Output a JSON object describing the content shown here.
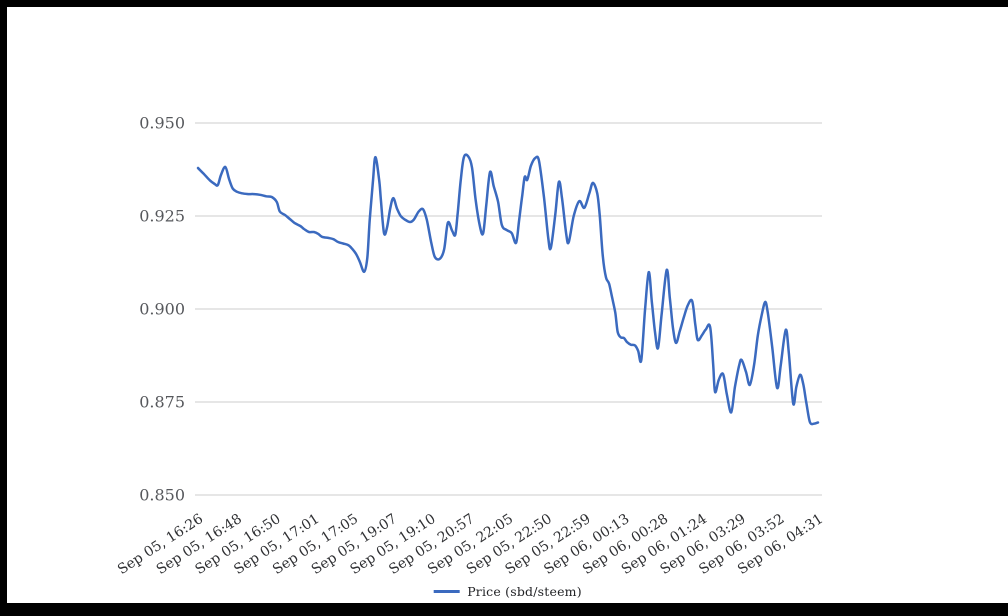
{
  "window": {
    "background": "#000000",
    "content_background": "#ffffff"
  },
  "chart_data": {
    "type": "line",
    "title": "",
    "series": [
      {
        "name": "Price (sbd/steem)",
        "color": "#3b6abf"
      }
    ],
    "ylim": [
      0.85,
      0.95
    ],
    "y_tick_values": [
      0.95,
      0.925,
      0.9,
      0.875,
      0.85
    ],
    "y_tick_labels": [
      "0.950",
      "0.925",
      "0.900",
      "0.875",
      "0.850"
    ],
    "x_tick_labels": [
      "Sep 05, 16:26",
      "Sep 05, 16:48",
      "Sep 05, 16:50",
      "Sep 05, 17:01",
      "Sep 05, 17:05",
      "Sep 05, 19:07",
      "Sep 05, 19:10",
      "Sep 05, 20:57",
      "Sep 05, 22:05",
      "Sep 05, 22:50",
      "Sep 05, 22:59",
      "Sep 06, 00:13",
      "Sep 06, 00:28",
      "Sep 06, 01:24",
      "Sep 06, 03:29",
      "Sep 06, 03:52",
      "Sep 06, 04:31"
    ],
    "grid": "horizontal-only",
    "grid_color": "#cccccc",
    "axis_text_color_y": "#56585c",
    "axis_text_color_x": "#2f3033",
    "legend_position": "bottom-center",
    "x_label_rotation_deg": -33,
    "samples": [
      [
        0.0,
        0.9379
      ],
      [
        0.01,
        0.9362
      ],
      [
        0.019,
        0.9346
      ],
      [
        0.027,
        0.9336
      ],
      [
        0.032,
        0.9333
      ],
      [
        0.037,
        0.936
      ],
      [
        0.044,
        0.9382
      ],
      [
        0.05,
        0.935
      ],
      [
        0.056,
        0.9324
      ],
      [
        0.063,
        0.9315
      ],
      [
        0.071,
        0.9311
      ],
      [
        0.081,
        0.9309
      ],
      [
        0.09,
        0.9309
      ],
      [
        0.1,
        0.9307
      ],
      [
        0.11,
        0.9303
      ],
      [
        0.119,
        0.9301
      ],
      [
        0.127,
        0.9288
      ],
      [
        0.132,
        0.9262
      ],
      [
        0.14,
        0.9253
      ],
      [
        0.148,
        0.9242
      ],
      [
        0.156,
        0.9231
      ],
      [
        0.165,
        0.9223
      ],
      [
        0.171,
        0.9215
      ],
      [
        0.179,
        0.9207
      ],
      [
        0.187,
        0.9207
      ],
      [
        0.194,
        0.9202
      ],
      [
        0.2,
        0.9194
      ],
      [
        0.21,
        0.9191
      ],
      [
        0.218,
        0.9188
      ],
      [
        0.226,
        0.918
      ],
      [
        0.234,
        0.9176
      ],
      [
        0.242,
        0.9172
      ],
      [
        0.247,
        0.9165
      ],
      [
        0.252,
        0.9155
      ],
      [
        0.256,
        0.9145
      ],
      [
        0.261,
        0.9127
      ],
      [
        0.268,
        0.91
      ],
      [
        0.273,
        0.9137
      ],
      [
        0.277,
        0.9239
      ],
      [
        0.282,
        0.9339
      ],
      [
        0.286,
        0.9408
      ],
      [
        0.292,
        0.935
      ],
      [
        0.295,
        0.9293
      ],
      [
        0.3,
        0.9204
      ],
      [
        0.305,
        0.922
      ],
      [
        0.31,
        0.927
      ],
      [
        0.315,
        0.9298
      ],
      [
        0.321,
        0.927
      ],
      [
        0.327,
        0.925
      ],
      [
        0.334,
        0.924
      ],
      [
        0.342,
        0.9234
      ],
      [
        0.348,
        0.924
      ],
      [
        0.356,
        0.9262
      ],
      [
        0.363,
        0.9268
      ],
      [
        0.369,
        0.924
      ],
      [
        0.376,
        0.918
      ],
      [
        0.382,
        0.914
      ],
      [
        0.39,
        0.9135
      ],
      [
        0.397,
        0.916
      ],
      [
        0.403,
        0.9232
      ],
      [
        0.41,
        0.921
      ],
      [
        0.415,
        0.92
      ],
      [
        0.419,
        0.926
      ],
      [
        0.424,
        0.935
      ],
      [
        0.429,
        0.9409
      ],
      [
        0.436,
        0.941
      ],
      [
        0.442,
        0.938
      ],
      [
        0.448,
        0.929
      ],
      [
        0.455,
        0.922
      ],
      [
        0.46,
        0.9204
      ],
      [
        0.465,
        0.928
      ],
      [
        0.471,
        0.9368
      ],
      [
        0.477,
        0.933
      ],
      [
        0.484,
        0.9288
      ],
      [
        0.49,
        0.9226
      ],
      [
        0.498,
        0.9212
      ],
      [
        0.506,
        0.9204
      ],
      [
        0.513,
        0.9178
      ],
      [
        0.518,
        0.924
      ],
      [
        0.523,
        0.9306
      ],
      [
        0.527,
        0.9355
      ],
      [
        0.531,
        0.9347
      ],
      [
        0.537,
        0.9385
      ],
      [
        0.544,
        0.9406
      ],
      [
        0.55,
        0.9398
      ],
      [
        0.558,
        0.93
      ],
      [
        0.565,
        0.919
      ],
      [
        0.569,
        0.9164
      ],
      [
        0.576,
        0.925
      ],
      [
        0.582,
        0.9341
      ],
      [
        0.587,
        0.93
      ],
      [
        0.594,
        0.92
      ],
      [
        0.598,
        0.918
      ],
      [
        0.606,
        0.925
      ],
      [
        0.615,
        0.929
      ],
      [
        0.623,
        0.9272
      ],
      [
        0.631,
        0.931
      ],
      [
        0.637,
        0.9339
      ],
      [
        0.644,
        0.931
      ],
      [
        0.648,
        0.925
      ],
      [
        0.653,
        0.914
      ],
      [
        0.658,
        0.9085
      ],
      [
        0.663,
        0.9068
      ],
      [
        0.668,
        0.903
      ],
      [
        0.673,
        0.899
      ],
      [
        0.677,
        0.8938
      ],
      [
        0.682,
        0.8924
      ],
      [
        0.687,
        0.8922
      ],
      [
        0.692,
        0.8911
      ],
      [
        0.698,
        0.8904
      ],
      [
        0.705,
        0.8902
      ],
      [
        0.71,
        0.8887
      ],
      [
        0.715,
        0.8863
      ],
      [
        0.721,
        0.8997
      ],
      [
        0.727,
        0.9099
      ],
      [
        0.732,
        0.902
      ],
      [
        0.737,
        0.894
      ],
      [
        0.742,
        0.8895
      ],
      [
        0.748,
        0.899
      ],
      [
        0.756,
        0.9105
      ],
      [
        0.761,
        0.903
      ],
      [
        0.766,
        0.895
      ],
      [
        0.771,
        0.8909
      ],
      [
        0.777,
        0.894
      ],
      [
        0.784,
        0.898
      ],
      [
        0.79,
        0.901
      ],
      [
        0.797,
        0.9022
      ],
      [
        0.802,
        0.896
      ],
      [
        0.806,
        0.8917
      ],
      [
        0.813,
        0.893
      ],
      [
        0.819,
        0.8945
      ],
      [
        0.826,
        0.8952
      ],
      [
        0.831,
        0.885
      ],
      [
        0.834,
        0.8777
      ],
      [
        0.84,
        0.881
      ],
      [
        0.847,
        0.8825
      ],
      [
        0.853,
        0.877
      ],
      [
        0.86,
        0.8722
      ],
      [
        0.866,
        0.879
      ],
      [
        0.873,
        0.885
      ],
      [
        0.877,
        0.8863
      ],
      [
        0.884,
        0.883
      ],
      [
        0.89,
        0.8796
      ],
      [
        0.897,
        0.885
      ],
      [
        0.903,
        0.893
      ],
      [
        0.91,
        0.899
      ],
      [
        0.915,
        0.9019
      ],
      [
        0.919,
        0.899
      ],
      [
        0.926,
        0.89
      ],
      [
        0.934,
        0.8788
      ],
      [
        0.94,
        0.885
      ],
      [
        0.948,
        0.8944
      ],
      [
        0.953,
        0.888
      ],
      [
        0.96,
        0.8746
      ],
      [
        0.965,
        0.879
      ],
      [
        0.971,
        0.8823
      ],
      [
        0.976,
        0.88
      ],
      [
        0.981,
        0.875
      ],
      [
        0.987,
        0.8696
      ],
      [
        0.994,
        0.8692
      ],
      [
        1.0,
        0.8695
      ]
    ]
  }
}
